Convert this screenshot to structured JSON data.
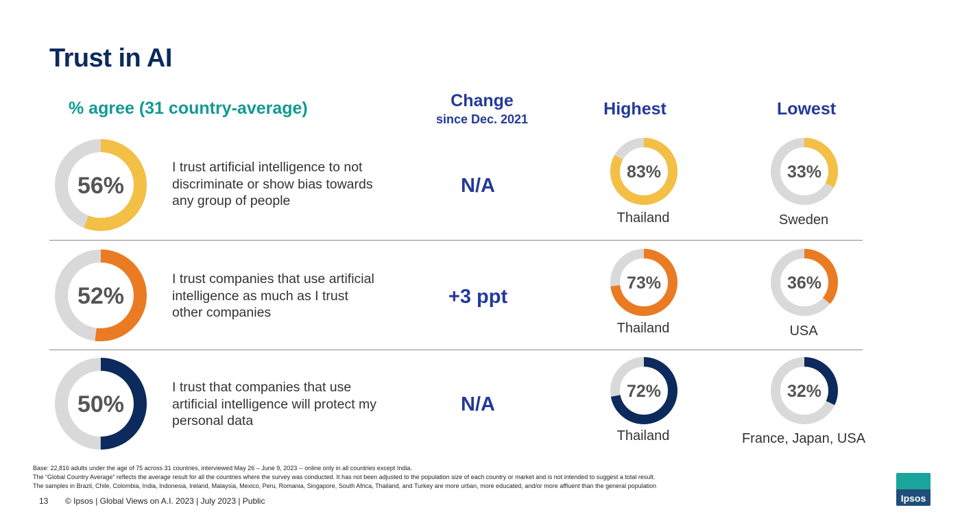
{
  "title": "Trust in AI",
  "headers": {
    "agree": "% agree (31 country-average)",
    "change": "Change",
    "change_sub": "since Dec. 2021",
    "highest": "Highest",
    "lowest": "Lowest"
  },
  "colors": {
    "track": "#d9d9d9",
    "row1": "#f3bf45",
    "row2": "#ea7b23",
    "row3": "#0c2a5b",
    "label": "#555555"
  },
  "chart_data": {
    "type": "donut",
    "rows": [
      {
        "statement": "I trust artificial intelligence to not discriminate or show bias towards any group of people",
        "average": 56,
        "average_label": "56%",
        "change": "N/A",
        "highest": {
          "value": 83,
          "label": "83%",
          "country": "Thailand"
        },
        "lowest": {
          "value": 33,
          "label": "33%",
          "country": "Sweden"
        }
      },
      {
        "statement": "I trust companies that use artificial intelligence as much as I trust other companies",
        "average": 52,
        "average_label": "52%",
        "change": "+3 ppt",
        "highest": {
          "value": 73,
          "label": "73%",
          "country": "Thailand"
        },
        "lowest": {
          "value": 36,
          "label": "36%",
          "country": "USA"
        }
      },
      {
        "statement": "I trust that companies that use artificial intelligence will protect my personal data",
        "average": 50,
        "average_label": "50%",
        "change": "N/A",
        "highest": {
          "value": 72,
          "label": "72%",
          "country": "Thailand"
        },
        "lowest": {
          "value": 32,
          "label": "32%",
          "country": "France, Japan, USA"
        }
      }
    ]
  },
  "footnotes": [
    "Base: 22,816 adults under the age of 75 across 31 countries, interviewed May 26 – June 9, 2023 -- online only in all countries except India.",
    "The “Global Country Average” reflects the average result for all the countries where the survey was conducted. It has not been adjusted to the population size of each country or market and is not intended to suggest a total result.",
    "The samples in Brazil, Chile, Colombia, India, Indonesia, Ireland, Malaysia, Mexico, Peru, Romania, Singapore, South Africa, Thailand, and Turkey are more urban, more educated, and/or more affluent than the general population"
  ],
  "footer": {
    "page_number": "13",
    "text": "© Ipsos | Global Views on A.I. 2023 | July 2023 | Public"
  },
  "logo_text": "Ipsos"
}
